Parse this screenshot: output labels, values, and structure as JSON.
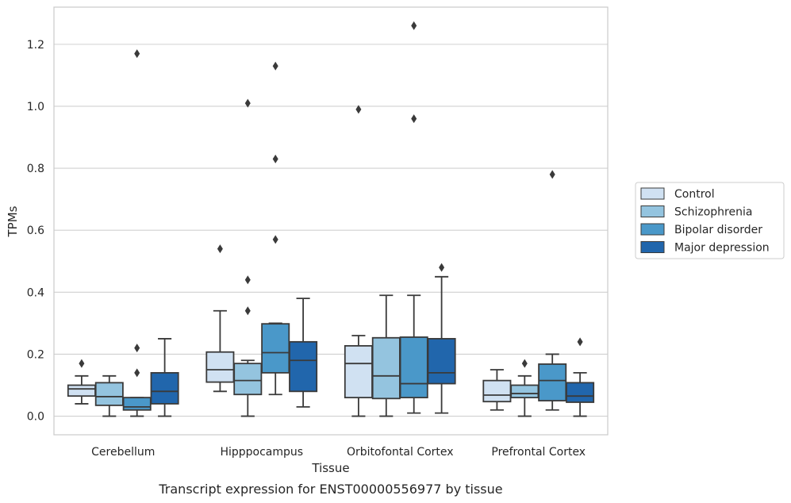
{
  "chart_data": {
    "type": "box",
    "title": "Transcript expression for ENST00000556977 by tissue",
    "xlabel": "Tissue",
    "ylabel": "TPMs",
    "ylim": [
      -0.06,
      1.32
    ],
    "yticks": [
      "0.0",
      "0.2",
      "0.4",
      "0.6",
      "0.8",
      "1.0",
      "1.2"
    ],
    "grid": true,
    "legend_position": "right",
    "categories": [
      "Cerebellum",
      "Hipppocampus",
      "Orbitofontal Cortex",
      "Prefrontal Cortex"
    ],
    "series": [
      {
        "name": "Control",
        "color": "#d0e1f2",
        "boxes": [
          {
            "whislo": 0.04,
            "q1": 0.065,
            "med": 0.088,
            "q3": 0.1,
            "whishi": 0.13,
            "fliers": [
              0.17
            ]
          },
          {
            "whislo": 0.08,
            "q1": 0.11,
            "med": 0.15,
            "q3": 0.207,
            "whishi": 0.34,
            "fliers": [
              0.54
            ]
          },
          {
            "whislo": 0.0,
            "q1": 0.06,
            "med": 0.17,
            "q3": 0.227,
            "whishi": 0.26,
            "fliers": [
              0.99
            ]
          },
          {
            "whislo": 0.02,
            "q1": 0.047,
            "med": 0.068,
            "q3": 0.115,
            "whishi": 0.15,
            "fliers": []
          }
        ]
      },
      {
        "name": "Schizophrenia",
        "color": "#94c4df",
        "boxes": [
          {
            "whislo": 0.0,
            "q1": 0.035,
            "med": 0.063,
            "q3": 0.108,
            "whishi": 0.13,
            "fliers": []
          },
          {
            "whislo": 0.0,
            "q1": 0.07,
            "med": 0.115,
            "q3": 0.17,
            "whishi": 0.18,
            "fliers": [
              0.34,
              0.44,
              1.01
            ]
          },
          {
            "whislo": 0.0,
            "q1": 0.057,
            "med": 0.13,
            "q3": 0.253,
            "whishi": 0.39,
            "fliers": []
          },
          {
            "whislo": 0.0,
            "q1": 0.06,
            "med": 0.073,
            "q3": 0.1,
            "whishi": 0.13,
            "fliers": [
              0.17
            ]
          }
        ]
      },
      {
        "name": "Bipolar disorder",
        "color": "#4a98c9",
        "boxes": [
          {
            "whislo": 0.0,
            "q1": 0.02,
            "med": 0.03,
            "q3": 0.06,
            "whishi": 0.06,
            "fliers": [
              0.14,
              0.22,
              1.17
            ]
          },
          {
            "whislo": 0.07,
            "q1": 0.14,
            "med": 0.205,
            "q3": 0.298,
            "whishi": 0.3,
            "fliers": [
              0.57,
              0.83,
              1.13
            ]
          },
          {
            "whislo": 0.01,
            "q1": 0.06,
            "med": 0.105,
            "q3": 0.255,
            "whishi": 0.39,
            "fliers": [
              0.96,
              1.26
            ]
          },
          {
            "whislo": 0.02,
            "q1": 0.05,
            "med": 0.115,
            "q3": 0.168,
            "whishi": 0.2,
            "fliers": [
              0.78
            ]
          }
        ]
      },
      {
        "name": "Major depression",
        "color": "#2166ac",
        "boxes": [
          {
            "whislo": 0.0,
            "q1": 0.04,
            "med": 0.08,
            "q3": 0.14,
            "whishi": 0.25,
            "fliers": []
          },
          {
            "whislo": 0.03,
            "q1": 0.08,
            "med": 0.18,
            "q3": 0.24,
            "whishi": 0.38,
            "fliers": []
          },
          {
            "whislo": 0.01,
            "q1": 0.105,
            "med": 0.14,
            "q3": 0.25,
            "whishi": 0.45,
            "fliers": [
              0.48
            ]
          },
          {
            "whislo": 0.0,
            "q1": 0.045,
            "med": 0.065,
            "q3": 0.108,
            "whishi": 0.14,
            "fliers": [
              0.24
            ]
          }
        ]
      }
    ]
  }
}
